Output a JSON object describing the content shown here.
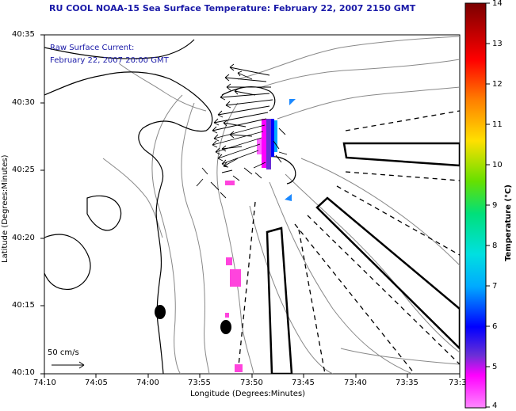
{
  "title": "RU COOL  NOAA-15  Sea Surface Temperature:  February 22, 2007 2150 GMT",
  "legend": {
    "line1": "Raw Surface Current:",
    "line2": "February 22, 2007 20:00 GMT"
  },
  "scale_label": "50 cm/s",
  "x_axis": {
    "label": "Longitude (Degrees:Minutes)",
    "ticks": [
      "74:10",
      "74:05",
      "74:00",
      "73:55",
      "73:50",
      "73:45",
      "73:40",
      "73:35",
      "73:3"
    ]
  },
  "y_axis": {
    "label": "Latitude (Degrees:Minutes)",
    "ticks": [
      "40:35",
      "40:30",
      "40:25",
      "40:20",
      "40:15",
      "40:10"
    ]
  },
  "colorbar": {
    "label": "Temperature (°C)",
    "ticks": [
      "14",
      "13",
      "12",
      "11",
      "10",
      "9",
      "8",
      "7",
      "6",
      "5",
      "4"
    ],
    "min": 4,
    "max": 14
  },
  "colors": {
    "title": "#1a1aa8",
    "land_outline": "#000000",
    "bathymetry": "#888888"
  }
}
